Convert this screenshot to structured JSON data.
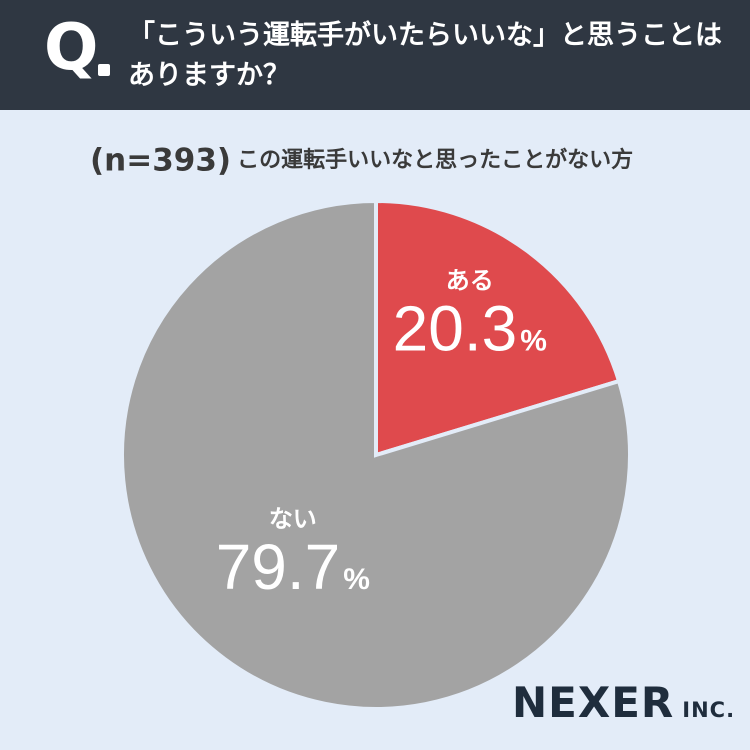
{
  "header": {
    "q_letter": "Q",
    "question_line1": "「こういう運転手がいたらいいな」と思うことは",
    "question_line2": "ありますか？"
  },
  "subtitle": {
    "sample": "(n=393)",
    "text": "この運転手いいなと思ったことがない方"
  },
  "chart_data": {
    "type": "pie",
    "title": "",
    "n": 393,
    "slices": [
      {
        "label": "ある",
        "value": 20.3,
        "display": "20.3",
        "color": "#df4a4d"
      },
      {
        "label": "ない",
        "value": 79.7,
        "display": "79.7",
        "color": "#a3a3a3"
      }
    ],
    "unit": "%",
    "start_angle": "12 o'clock",
    "direction": "clockwise"
  },
  "logo": {
    "main": "NEXER",
    "sub": "INC."
  }
}
